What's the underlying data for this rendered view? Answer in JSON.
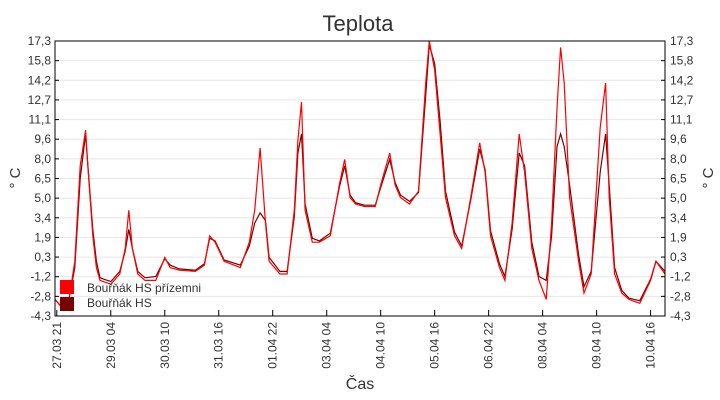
{
  "chart_data": {
    "type": "line",
    "title": "Teplota",
    "xlabel": "Čas",
    "ylabel": "° C",
    "ylim": [
      -4.3,
      17.3
    ],
    "yticks": [
      "17,3",
      "15,8",
      "14,2",
      "12,7",
      "11,1",
      "9,6",
      "8,0",
      "6,5",
      "5,0",
      "3,4",
      "1,9",
      "0,3",
      "-1,2",
      "-2,8",
      "-4,3"
    ],
    "xlim_hours": [
      0,
      339
    ],
    "xtick_labels": [
      "27.03 21",
      "29.03 04",
      "30.03 10",
      "31.03 16",
      "01.04 22",
      "03.04 04",
      "04.04 10",
      "05.04 16",
      "06.04 22",
      "08.04 04",
      "09.04 10",
      "10.04 16"
    ],
    "xtick_hours": [
      1,
      31,
      61,
      91,
      121,
      151,
      181,
      211,
      241,
      271,
      301,
      331
    ],
    "grid": true,
    "legend_position": "bottom-left",
    "x_hours": [
      0,
      3,
      8,
      11,
      14,
      17,
      18,
      21,
      23,
      25,
      31,
      36,
      39,
      41,
      43,
      46,
      50,
      56,
      61,
      64,
      69,
      78,
      83,
      86,
      89,
      94,
      103,
      108,
      111,
      114,
      117,
      119,
      125,
      129,
      133,
      135,
      137,
      139,
      143,
      147,
      153,
      158,
      161,
      164,
      167,
      172,
      178,
      181,
      186,
      189,
      192,
      197,
      202,
      206,
      208,
      211,
      214,
      217,
      222,
      226,
      231,
      236,
      239,
      242,
      247,
      250,
      254,
      258,
      261,
      265,
      269,
      273,
      276,
      279,
      281,
      283,
      286,
      291,
      294,
      298,
      303,
      306,
      308,
      311,
      315,
      319,
      325,
      331,
      334,
      339
    ],
    "series": [
      {
        "name": "Bouřňák HS přízemni",
        "color": "#ff0000",
        "values": [
          -3,
          -3.5,
          -2.8,
          0,
          7.5,
          10.3,
          8,
          2,
          -0.5,
          -1.5,
          -1.8,
          -1,
          1,
          4,
          1,
          -1,
          -1.5,
          -1.5,
          0.3,
          -0.5,
          -0.7,
          -0.8,
          -0.3,
          2,
          1.5,
          0,
          -0.5,
          1.5,
          4,
          8.9,
          3,
          0,
          -1,
          -1,
          4,
          9.5,
          12.5,
          4,
          1.5,
          1.5,
          2,
          6,
          8,
          5,
          4.5,
          4.3,
          4.3,
          6,
          8.5,
          6,
          5,
          4.5,
          5.5,
          14,
          17.3,
          15,
          10,
          5,
          2,
          1,
          5,
          9.3,
          7,
          2,
          -0.5,
          -1.5,
          3,
          10,
          7,
          1,
          -1.5,
          -3,
          3,
          12,
          16.8,
          14,
          5,
          0,
          -2.5,
          -1,
          10.5,
          14,
          5,
          -1,
          -2.5,
          -3,
          -3.3,
          -1.5,
          0,
          -1
        ]
      },
      {
        "name": "Bouřňák HS",
        "color": "#7a0000",
        "values": [
          -3,
          -3.5,
          -2.8,
          -0.5,
          6.5,
          10,
          8,
          2.5,
          0,
          -1.3,
          -1.6,
          -0.8,
          0.8,
          2.5,
          1,
          -0.8,
          -1.3,
          -1.2,
          0.2,
          -0.3,
          -0.6,
          -0.7,
          -0.2,
          1.8,
          1.6,
          0.1,
          -0.3,
          1.2,
          3,
          3.8,
          3.2,
          0.3,
          -0.8,
          -0.8,
          3.5,
          8.5,
          10,
          4.5,
          1.8,
          1.6,
          2.2,
          5.8,
          7.5,
          5.2,
          4.6,
          4.4,
          4.4,
          5.8,
          8,
          6.2,
          5.2,
          4.7,
          5.4,
          13,
          17,
          15.5,
          11,
          5.5,
          2.3,
          1.2,
          4.8,
          8.8,
          7.2,
          2.4,
          -0.2,
          -1.2,
          2.5,
          8.5,
          7.5,
          1.5,
          -1.2,
          -1.5,
          2,
          9,
          10,
          9,
          6,
          0.5,
          -2,
          -0.8,
          7,
          10,
          6,
          -0.5,
          -2.3,
          -2.9,
          -3.1,
          -1.4,
          0,
          -0.8
        ]
      }
    ]
  }
}
